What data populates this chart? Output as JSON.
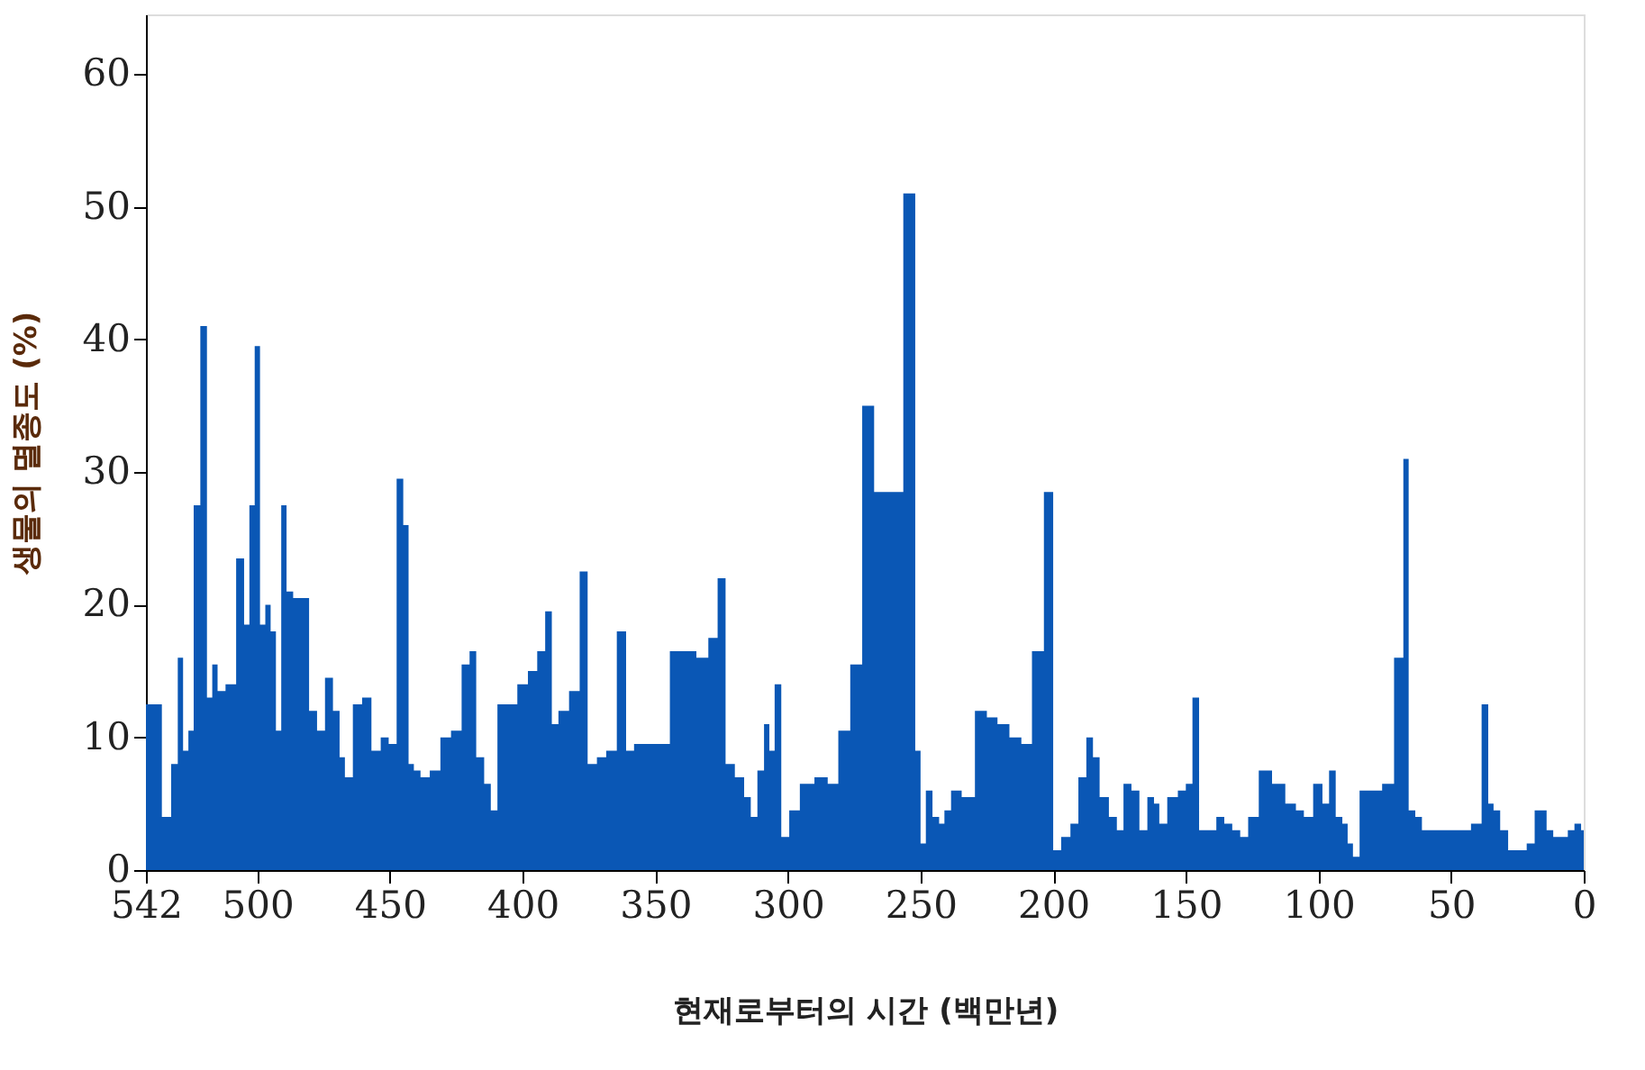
{
  "chart_data": {
    "type": "area",
    "xlabel": "현재로부터의 시간 (백만년)",
    "ylabel": "생물의 멸종도 (%)",
    "xlim": [
      542,
      0
    ],
    "xticks": [
      542,
      500,
      450,
      400,
      350,
      300,
      250,
      200,
      150,
      100,
      50,
      0
    ],
    "ylim": [
      0,
      64.5
    ],
    "yticks": [
      0,
      10,
      20,
      30,
      40,
      50,
      60
    ],
    "grid": false,
    "x": [
      542,
      538,
      534,
      531,
      529,
      527,
      525,
      523,
      520,
      518,
      516,
      514,
      510,
      506,
      504,
      502,
      500,
      498,
      496,
      494,
      492,
      490,
      488,
      485,
      482,
      479,
      476,
      473,
      470,
      468,
      466,
      462,
      459,
      455,
      452,
      449,
      446,
      444,
      442,
      440,
      437,
      433,
      429,
      425,
      421,
      419,
      416,
      413,
      411,
      408,
      404,
      400,
      396,
      393,
      390,
      388,
      385,
      380,
      377,
      374,
      370,
      367,
      362,
      360,
      356,
      350,
      346,
      343,
      337,
      332,
      328,
      325,
      322,
      318,
      315,
      313,
      310,
      308,
      306,
      304,
      301,
      298,
      293,
      287,
      283,
      279,
      274,
      270,
      265,
      260,
      253,
      251,
      249,
      247,
      244,
      242,
      240,
      237,
      232,
      227,
      223,
      219,
      214,
      210,
      206,
      201,
      199,
      195,
      192,
      189,
      186,
      184,
      181,
      177,
      175,
      172,
      169,
      166,
      163,
      161,
      159,
      155,
      151,
      149,
      146,
      144,
      140,
      137,
      134,
      131,
      128,
      125,
      120,
      115,
      110,
      107,
      104,
      100,
      97,
      95,
      92,
      90,
      88,
      86,
      83,
      78,
      74,
      69,
      67,
      65,
      62,
      60,
      55,
      50,
      45,
      40,
      37,
      35,
      33,
      30,
      27,
      23,
      20,
      17,
      15,
      13,
      10,
      7,
      5,
      2,
      0
    ],
    "series": [
      {
        "color": "#0a57b5",
        "values": [
          12.5,
          12.5,
          4,
          8,
          16,
          9,
          10.5,
          27.5,
          41,
          13,
          15.5,
          13.5,
          14,
          23.5,
          18.5,
          27.5,
          39.5,
          18.5,
          20,
          18,
          10.5,
          27.5,
          21,
          20.5,
          20.5,
          12,
          10.5,
          14.5,
          12,
          8.5,
          7,
          12.5,
          13,
          9,
          10,
          9.5,
          29.5,
          26,
          8,
          7.5,
          7,
          7.5,
          10,
          10.5,
          15.5,
          16.5,
          8.5,
          6.5,
          4.5,
          12.5,
          12.5,
          14,
          15,
          16.5,
          19.5,
          11,
          12,
          13.5,
          22.5,
          8,
          8.5,
          9,
          18,
          9,
          9.5,
          9.5,
          9.5,
          16.5,
          16.5,
          16,
          17.5,
          22,
          8,
          7,
          5.5,
          4,
          7.5,
          11,
          9,
          14,
          2.5,
          4.5,
          6.5,
          7,
          6.5,
          10.5,
          15.5,
          35,
          28.5,
          28.5,
          51,
          9,
          2,
          6,
          4,
          3.5,
          4.5,
          6,
          5.5,
          12,
          11.5,
          11,
          10,
          9.5,
          16.5,
          28.5,
          1.5,
          2.5,
          3.5,
          7,
          10,
          8.5,
          5.5,
          4,
          3,
          6.5,
          6,
          3,
          5.5,
          5,
          3.5,
          5.5,
          6,
          6.5,
          13,
          3,
          3,
          4,
          3.5,
          3,
          2.5,
          4,
          7.5,
          6.5,
          5,
          4.5,
          4,
          6.5,
          5,
          7.5,
          4,
          3.5,
          2,
          1,
          6,
          6,
          6.5,
          16,
          31,
          4.5,
          4,
          3,
          3,
          3,
          3,
          3.5,
          12.5,
          5,
          4.5,
          3,
          1.5,
          1.5,
          2,
          4.5,
          4.5,
          3,
          2.5,
          2.5,
          3,
          3.5,
          3
        ]
      }
    ]
  }
}
